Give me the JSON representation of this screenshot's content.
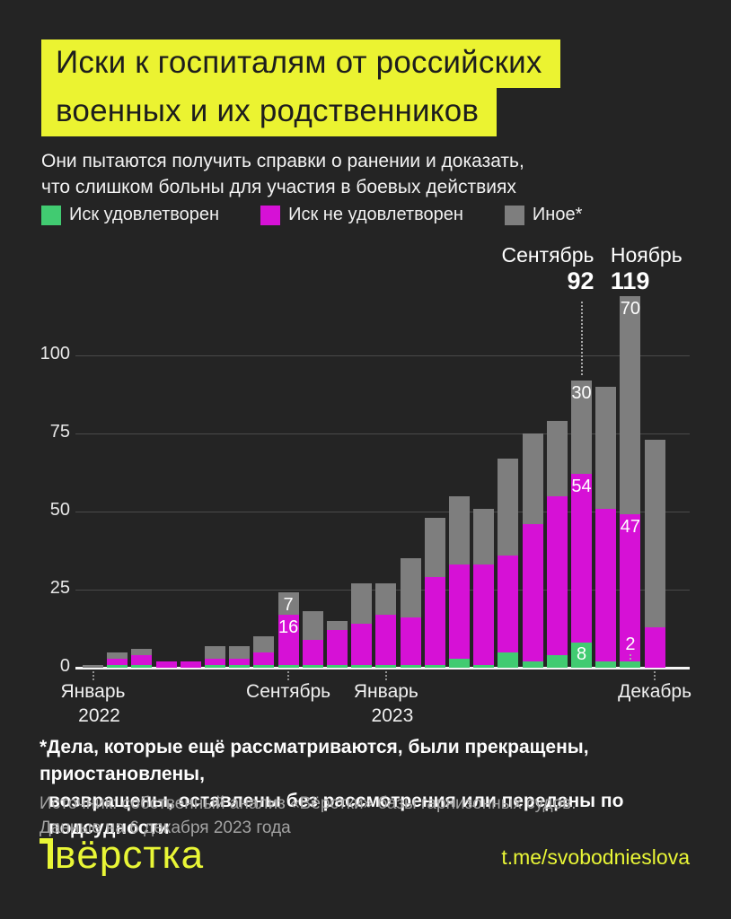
{
  "header": {
    "title_line1": "Иски к госпиталям от российских",
    "title_line2": "военных и их родственников",
    "subtitle_line1": "Они пытаются получить справки о ранении и доказать,",
    "subtitle_line2": "что слишком больны для участия в боевых действиях"
  },
  "chart_data": {
    "type": "bar",
    "stacked": true,
    "title": "Иски к госпиталям от российских военных и их родственников",
    "y_ticks": [
      0,
      25,
      50,
      75,
      100
    ],
    "ylim": [
      0,
      125
    ],
    "grid": true,
    "months": [
      "2022-01",
      "2022-02",
      "2022-03",
      "2022-04",
      "2022-05",
      "2022-06",
      "2022-07",
      "2022-08",
      "2022-09",
      "2022-10",
      "2022-11",
      "2022-12",
      "2023-01",
      "2023-02",
      "2023-03",
      "2023-04",
      "2023-05",
      "2023-06",
      "2023-07",
      "2023-08",
      "2023-09",
      "2023-10",
      "2023-11",
      "2023-12"
    ],
    "series": [
      {
        "key": "satisfied",
        "name": "Иск удовлетворен",
        "color": "#41cb71",
        "values": [
          0,
          1,
          1,
          0,
          0,
          1,
          1,
          1,
          1,
          1,
          1,
          1,
          1,
          1,
          1,
          3,
          1,
          5,
          2,
          4,
          8,
          2,
          2,
          0
        ]
      },
      {
        "key": "denied",
        "name": "Иск не удовлетворен",
        "color": "#d611d6",
        "values": [
          0,
          2,
          3,
          2,
          2,
          2,
          2,
          4,
          16,
          8,
          11,
          13,
          16,
          15,
          28,
          30,
          32,
          31,
          44,
          51,
          54,
          49,
          47,
          13
        ]
      },
      {
        "key": "other",
        "name": "Иное*",
        "color": "#7e7e7e",
        "values": [
          1,
          2,
          2,
          0,
          0,
          4,
          4,
          5,
          7,
          9,
          3,
          13,
          10,
          19,
          19,
          22,
          18,
          31,
          29,
          24,
          30,
          39,
          70,
          60
        ]
      }
    ],
    "totals": [
      1,
      5,
      6,
      2,
      2,
      7,
      7,
      10,
      24,
      18,
      15,
      27,
      27,
      35,
      48,
      55,
      51,
      67,
      75,
      79,
      92,
      90,
      119,
      73
    ],
    "value_labels": {
      "8": {
        "denied": 16,
        "other": 7
      },
      "20": {
        "satisfied": 8,
        "denied": 54,
        "other": 30
      },
      "22": {
        "satisfied": 2,
        "denied": 47,
        "other": 70
      }
    },
    "annotations": [
      {
        "index": 20,
        "label": "Сентябрь",
        "total": 92,
        "align": "right"
      },
      {
        "index": 22,
        "label": "Ноябрь",
        "total": 119,
        "align": "left"
      }
    ],
    "x_tick_labels": [
      {
        "index": 0,
        "line1": "Январь",
        "line2": "2022"
      },
      {
        "index": 8,
        "line1": "Сентябрь",
        "line2": ""
      },
      {
        "index": 12,
        "line1": "Январь",
        "line2": "2023"
      },
      {
        "index": 23,
        "line1": "Декабрь",
        "line2": ""
      }
    ]
  },
  "footer": {
    "footnote_line1": "*Дела, которые ещё рассматриваются, были прекращены, приостановлены,",
    "footnote_line2": "возвращены, оставлены без рассмотрения или переданы по подсудности",
    "source_line1": "Источник: собственный анализ «Вёрстки» базы гарнизонных судов.",
    "source_line2": "Данные на 6 декабря 2023 года",
    "logo_text": "вёрстка",
    "telegram": "t.me/svobodnieslova"
  }
}
